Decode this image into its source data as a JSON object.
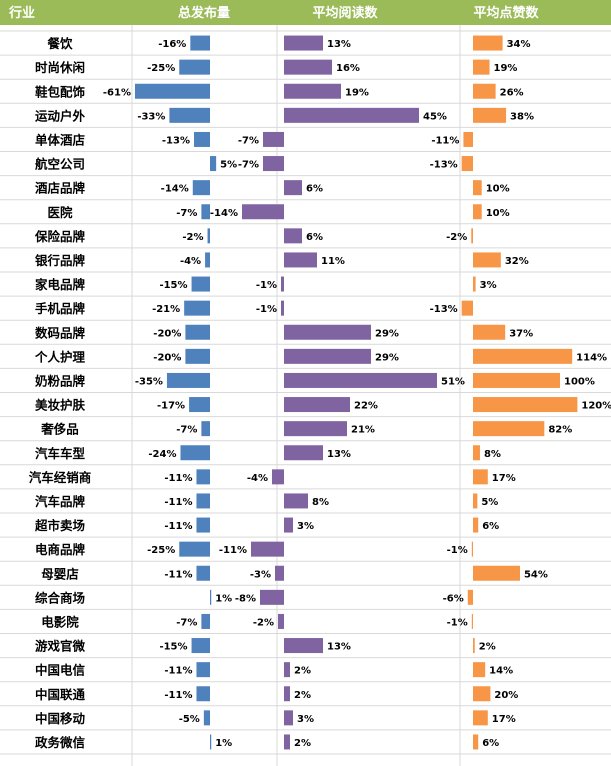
{
  "chart_data": {
    "type": "table",
    "headers": [
      "行业",
      "总发布量",
      "平均阅读数",
      "平均点赞数"
    ],
    "categories": [
      "餐饮",
      "时尚休闲",
      "鞋包配饰",
      "运动户外",
      "单体酒店",
      "航空公司",
      "酒店品牌",
      "医院",
      "保险品牌",
      "银行品牌",
      "家电品牌",
      "手机品牌",
      "数码品牌",
      "个人护理",
      "奶粉品牌",
      "美妆护肤",
      "奢侈品",
      "汽车车型",
      "汽车经销商",
      "汽车品牌",
      "超市卖场",
      "电商品牌",
      "母婴店",
      "综合商场",
      "电影院",
      "游戏官微",
      "中国电信",
      "中国联通",
      "中国移动",
      "政务微信"
    ],
    "series": [
      {
        "name": "总发布量",
        "values": [
          -16,
          -25,
          -61,
          -33,
          -13,
          5,
          -14,
          -7,
          -2,
          -4,
          -15,
          -21,
          -20,
          -20,
          -35,
          -17,
          -7,
          -24,
          -11,
          -11,
          -11,
          -25,
          -11,
          1,
          -7,
          -15,
          -11,
          -11,
          -5,
          1
        ],
        "color": "#4f81bd"
      },
      {
        "name": "平均阅读数",
        "values": [
          13,
          16,
          19,
          45,
          -7,
          -7,
          6,
          -14,
          6,
          11,
          -1,
          -1,
          29,
          29,
          51,
          22,
          21,
          13,
          -4,
          8,
          3,
          -11,
          -3,
          -8,
          -2,
          13,
          2,
          2,
          3,
          2
        ],
        "color": "#8064a2"
      },
      {
        "name": "平均点赞数",
        "values": [
          34,
          19,
          26,
          38,
          -11,
          -13,
          10,
          10,
          -2,
          32,
          3,
          -13,
          37,
          114,
          100,
          120,
          82,
          8,
          17,
          5,
          6,
          -1,
          54,
          -6,
          -1,
          2,
          14,
          20,
          17,
          6
        ],
        "color": "#f79646"
      }
    ],
    "value_labels": [
      [
        "-16%",
        "-25%",
        "-61%",
        "-33%",
        "-13%",
        "5%",
        "-14%",
        "-7%",
        "-2%",
        "-4%",
        "-15%",
        "-21%",
        "-20%",
        "-20%",
        "-35%",
        "-17%",
        "-7%",
        "-24%",
        "-11%",
        "-11%",
        "-11%",
        "-25%",
        "-11%",
        "1%",
        "-7%",
        "-15%",
        "-11%",
        "-11%",
        "-5%",
        "1%"
      ],
      [
        "13%",
        "16%",
        "19%",
        "45%",
        "-7%",
        "-7%",
        "6%",
        "-14%",
        "6%",
        "11%",
        "-1%",
        "-1%",
        "29%",
        "29%",
        "51%",
        "22%",
        "21%",
        "13%",
        "-4%",
        "8%",
        "3%",
        "-11%",
        "-3%",
        "-8%",
        "-2%",
        "13%",
        "2%",
        "2%",
        "3%",
        "2%"
      ],
      [
        "34%",
        "19%",
        "26%",
        "38%",
        "-11%",
        "-13%",
        "10%",
        "10%",
        "-2%",
        "32%",
        "3%",
        "-13%",
        "37%",
        "114%",
        "100%",
        "120%",
        "82%",
        "8%",
        "17%",
        "5%",
        "6%",
        "-1%",
        "54%",
        "-6%",
        "-1%",
        "2%",
        "14%",
        "20%",
        "17%",
        "6%"
      ]
    ],
    "header_bg": "#9bbb59",
    "grid": true
  }
}
